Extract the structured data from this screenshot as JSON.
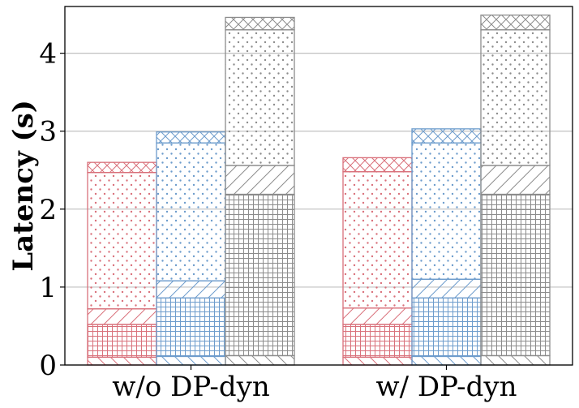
{
  "chart_data": {
    "type": "bar",
    "stacked": true,
    "title": "",
    "xlabel": "",
    "ylabel": "Latency (s)",
    "ylim": [
      0,
      4.6
    ],
    "yticks": [
      0,
      1,
      2,
      3,
      4
    ],
    "grid": "y",
    "groups": [
      "w/o DP-dyn",
      "w/ DP-dyn"
    ],
    "segment_patterns": [
      "backslash",
      "grid",
      "slash",
      "dots",
      "cross"
    ],
    "series": [
      {
        "name": "red",
        "color": "#d9717b",
        "groups": [
          [
            0.1,
            0.42,
            0.2,
            1.75,
            0.13
          ],
          [
            0.1,
            0.42,
            0.21,
            1.75,
            0.18
          ]
        ]
      },
      {
        "name": "blue",
        "color": "#6d9ccc",
        "groups": [
          [
            0.11,
            0.75,
            0.22,
            1.77,
            0.14
          ],
          [
            0.11,
            0.75,
            0.24,
            1.75,
            0.18
          ]
        ]
      },
      {
        "name": "gray",
        "color": "#8c8c8c",
        "groups": [
          [
            0.12,
            2.07,
            0.37,
            1.74,
            0.16
          ],
          [
            0.12,
            2.07,
            0.37,
            1.74,
            0.19
          ]
        ]
      }
    ]
  }
}
